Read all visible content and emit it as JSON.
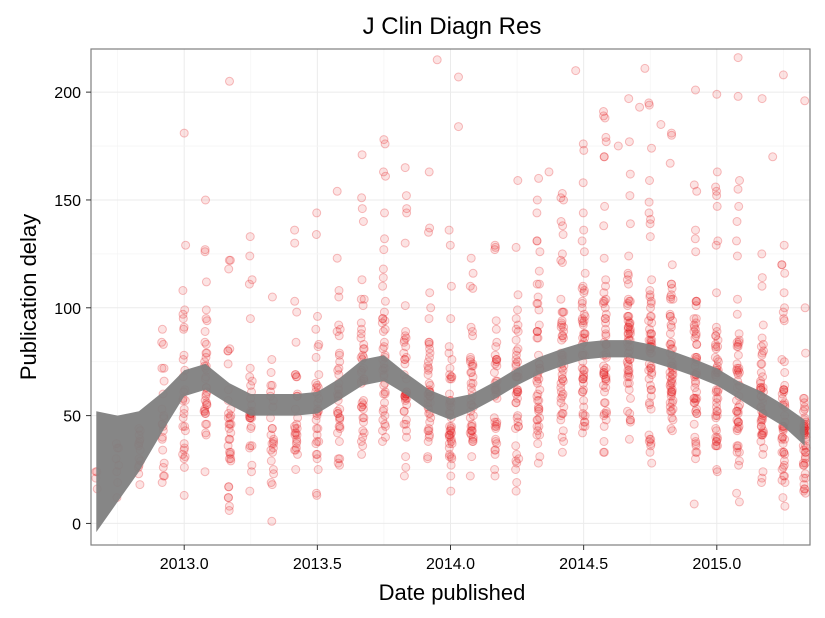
{
  "chart_data": {
    "type": "scatter",
    "title": "J Clin Diagn Res",
    "xlabel": "Date published",
    "ylabel": "Publication delay",
    "xlim": [
      2012.65,
      2015.35
    ],
    "ylim": [
      -10,
      220
    ],
    "x_ticks": [
      2013.0,
      2013.5,
      2014.0,
      2014.5,
      2015.0
    ],
    "x_tick_labels": [
      "2013.0",
      "2013.5",
      "2014.0",
      "2014.5",
      "2015.0"
    ],
    "y_ticks": [
      0,
      50,
      100,
      150,
      200
    ],
    "y_tick_labels": [
      "0",
      "50",
      "100",
      "150",
      "200"
    ],
    "grid": true,
    "point_color": "#e41a1c",
    "smooth_color": "#7f7f7f",
    "scatter_columns": [
      {
        "x": 2012.67,
        "median": 18,
        "spread": 8,
        "n": 4
      },
      {
        "x": 2012.75,
        "median": 28,
        "spread": 14,
        "n": 8
      },
      {
        "x": 2012.83,
        "median": 32,
        "spread": 18,
        "n": 14
      },
      {
        "x": 2012.92,
        "median": 45,
        "spread": 22,
        "n": 22
      },
      {
        "x": 2013.0,
        "median": 55,
        "spread": 28,
        "n": 30
      },
      {
        "x": 2013.08,
        "median": 62,
        "spread": 28,
        "n": 38
      },
      {
        "x": 2013.17,
        "median": 50,
        "spread": 26,
        "n": 34
      },
      {
        "x": 2013.25,
        "median": 48,
        "spread": 24,
        "n": 30
      },
      {
        "x": 2013.33,
        "median": 46,
        "spread": 22,
        "n": 26
      },
      {
        "x": 2013.42,
        "median": 50,
        "spread": 24,
        "n": 30
      },
      {
        "x": 2013.5,
        "median": 52,
        "spread": 26,
        "n": 34
      },
      {
        "x": 2013.58,
        "median": 58,
        "spread": 28,
        "n": 38
      },
      {
        "x": 2013.67,
        "median": 70,
        "spread": 30,
        "n": 42
      },
      {
        "x": 2013.75,
        "median": 68,
        "spread": 30,
        "n": 44
      },
      {
        "x": 2013.83,
        "median": 60,
        "spread": 28,
        "n": 40
      },
      {
        "x": 2013.92,
        "median": 55,
        "spread": 26,
        "n": 44
      },
      {
        "x": 2014.0,
        "median": 52,
        "spread": 24,
        "n": 46
      },
      {
        "x": 2014.08,
        "median": 55,
        "spread": 24,
        "n": 42
      },
      {
        "x": 2014.17,
        "median": 58,
        "spread": 26,
        "n": 42
      },
      {
        "x": 2014.25,
        "median": 65,
        "spread": 28,
        "n": 46
      },
      {
        "x": 2014.33,
        "median": 70,
        "spread": 30,
        "n": 50
      },
      {
        "x": 2014.42,
        "median": 74,
        "spread": 30,
        "n": 52
      },
      {
        "x": 2014.5,
        "median": 78,
        "spread": 30,
        "n": 56
      },
      {
        "x": 2014.58,
        "median": 80,
        "spread": 32,
        "n": 58
      },
      {
        "x": 2014.67,
        "median": 82,
        "spread": 32,
        "n": 60
      },
      {
        "x": 2014.75,
        "median": 80,
        "spread": 32,
        "n": 60
      },
      {
        "x": 2014.83,
        "median": 76,
        "spread": 30,
        "n": 58
      },
      {
        "x": 2014.92,
        "median": 72,
        "spread": 30,
        "n": 56
      },
      {
        "x": 2015.0,
        "median": 66,
        "spread": 30,
        "n": 54
      },
      {
        "x": 2015.08,
        "median": 58,
        "spread": 28,
        "n": 52
      },
      {
        "x": 2015.17,
        "median": 50,
        "spread": 26,
        "n": 50
      },
      {
        "x": 2015.25,
        "median": 44,
        "spread": 24,
        "n": 50
      },
      {
        "x": 2015.33,
        "median": 36,
        "spread": 20,
        "n": 48
      }
    ],
    "outliers": [
      {
        "x": 2013.0,
        "y": 181
      },
      {
        "x": 2013.17,
        "y": 205
      },
      {
        "x": 2013.08,
        "y": 150
      },
      {
        "x": 2013.95,
        "y": 215
      },
      {
        "x": 2014.03,
        "y": 207
      },
      {
        "x": 2014.03,
        "y": 184
      },
      {
        "x": 2014.47,
        "y": 210
      },
      {
        "x": 2014.73,
        "y": 211
      },
      {
        "x": 2014.92,
        "y": 201
      },
      {
        "x": 2015.0,
        "y": 199
      },
      {
        "x": 2015.08,
        "y": 216
      },
      {
        "x": 2015.08,
        "y": 198
      },
      {
        "x": 2015.17,
        "y": 197
      },
      {
        "x": 2015.25,
        "y": 208
      },
      {
        "x": 2015.33,
        "y": 196
      },
      {
        "x": 2013.83,
        "y": 165
      },
      {
        "x": 2013.92,
        "y": 163
      },
      {
        "x": 2014.58,
        "y": 188
      },
      {
        "x": 2014.71,
        "y": 193
      },
      {
        "x": 2014.79,
        "y": 185
      },
      {
        "x": 2014.63,
        "y": 175
      },
      {
        "x": 2013.75,
        "y": 178
      },
      {
        "x": 2014.37,
        "y": 163
      },
      {
        "x": 2015.21,
        "y": 170
      }
    ],
    "smooth": {
      "x": [
        2012.67,
        2012.75,
        2012.83,
        2012.92,
        2013.0,
        2013.08,
        2013.17,
        2013.25,
        2013.33,
        2013.42,
        2013.5,
        2013.58,
        2013.67,
        2013.75,
        2013.83,
        2013.92,
        2014.0,
        2014.08,
        2014.17,
        2014.25,
        2014.33,
        2014.42,
        2014.5,
        2014.58,
        2014.67,
        2014.75,
        2014.83,
        2014.92,
        2015.0,
        2015.08,
        2015.17,
        2015.25,
        2015.33
      ],
      "y": [
        24,
        30,
        38,
        52,
        65,
        68,
        60,
        55,
        55,
        55,
        56,
        62,
        70,
        72,
        65,
        57,
        53,
        56,
        62,
        68,
        73,
        77,
        80,
        81,
        81,
        79,
        76,
        72,
        68,
        62,
        56,
        50,
        42
      ],
      "half": [
        28,
        20,
        14,
        9,
        6,
        6,
        5,
        5,
        5,
        5,
        5,
        5,
        6,
        6,
        5,
        5,
        5,
        4,
        4,
        4,
        4,
        4,
        4,
        4,
        4,
        4,
        4,
        4,
        4,
        4,
        5,
        5,
        6
      ]
    }
  }
}
